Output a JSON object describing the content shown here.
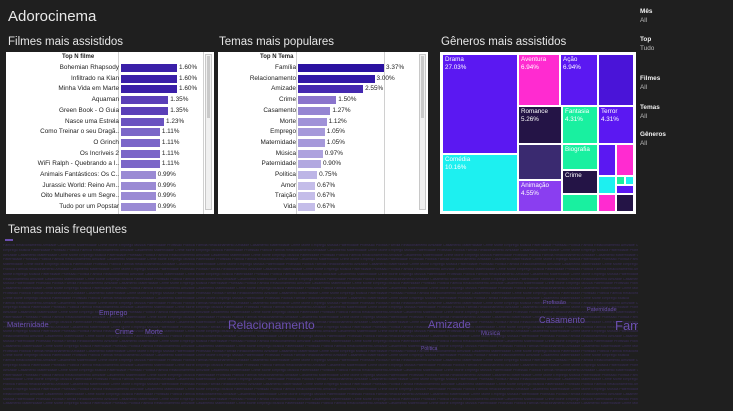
{
  "dashboard_title": "Adorocinema",
  "filmes": {
    "title": "Filmes mais assistidos",
    "col_header": "Top N filme",
    "rows": [
      {
        "label": "Bohemian Rhapsody",
        "value": 1.6,
        "text": "1.60%",
        "color": "#3a1fa8"
      },
      {
        "label": "Infiltrado na Klan",
        "value": 1.6,
        "text": "1.60%",
        "color": "#3a1fa8"
      },
      {
        "label": "Minha Vida em Marte",
        "value": 1.6,
        "text": "1.60%",
        "color": "#3a1fa8"
      },
      {
        "label": "Aquaman",
        "value": 1.35,
        "text": "1.35%",
        "color": "#5a3fb8"
      },
      {
        "label": "Green Book - O Guia",
        "value": 1.35,
        "text": "1.35%",
        "color": "#5a3fb8"
      },
      {
        "label": "Nasce uma Estrela",
        "value": 1.23,
        "text": "1.23%",
        "color": "#6a52c0"
      },
      {
        "label": "Como Treinar o seu Dragã..",
        "value": 1.11,
        "text": "1.11%",
        "color": "#7b66c8"
      },
      {
        "label": "O Grinch",
        "value": 1.11,
        "text": "1.11%",
        "color": "#7b66c8"
      },
      {
        "label": "Os Incríveis 2",
        "value": 1.11,
        "text": "1.11%",
        "color": "#7b66c8"
      },
      {
        "label": "WiFi Ralph - Quebrando a I..",
        "value": 1.11,
        "text": "1.11%",
        "color": "#7b66c8"
      },
      {
        "label": "Animais Fantásticos: Os C..",
        "value": 0.99,
        "text": "0.99%",
        "color": "#9a8ad4"
      },
      {
        "label": "Jurassic World: Reino Am..",
        "value": 0.99,
        "text": "0.99%",
        "color": "#9a8ad4"
      },
      {
        "label": "Oito Mulheres e um Segre..",
        "value": 0.99,
        "text": "0.99%",
        "color": "#9a8ad4"
      },
      {
        "label": "Tudo por um Popstar",
        "value": 0.99,
        "text": "0.99%",
        "color": "#9a8ad4"
      }
    ]
  },
  "temas": {
    "title": "Temas mais populares",
    "col_header": "Top N Tema",
    "rows": [
      {
        "label": "Família",
        "value": 3.37,
        "text": "3.37%",
        "color": "#2a11a0"
      },
      {
        "label": "Relacionamento",
        "value": 3.0,
        "text": "3.00%",
        "color": "#3218a6"
      },
      {
        "label": "Amizade",
        "value": 2.55,
        "text": "2.55%",
        "color": "#4428b0"
      },
      {
        "label": "Crime",
        "value": 1.5,
        "text": "1.50%",
        "color": "#8a74cc"
      },
      {
        "label": "Casamento",
        "value": 1.27,
        "text": "1.27%",
        "color": "#9585d2"
      },
      {
        "label": "Morte",
        "value": 1.12,
        "text": "1.12%",
        "color": "#a092d8"
      },
      {
        "label": "Emprego",
        "value": 1.05,
        "text": "1.05%",
        "color": "#a699da"
      },
      {
        "label": "Maternidade",
        "value": 1.05,
        "text": "1.05%",
        "color": "#a699da"
      },
      {
        "label": "Música",
        "value": 0.97,
        "text": "0.97%",
        "color": "#ada2de"
      },
      {
        "label": "Paternidade",
        "value": 0.9,
        "text": "0.90%",
        "color": "#b2a8e0"
      },
      {
        "label": "Política",
        "value": 0.75,
        "text": "0.75%",
        "color": "#bdb5e6"
      },
      {
        "label": "Amor",
        "value": 0.67,
        "text": "0.67%",
        "color": "#c4bde9"
      },
      {
        "label": "Traição",
        "value": 0.67,
        "text": "0.67%",
        "color": "#c4bde9"
      },
      {
        "label": "Vida",
        "value": 0.67,
        "text": "0.67%",
        "color": "#c4bde9"
      }
    ]
  },
  "generos": {
    "title": "Gêneros mais assistidos",
    "tiles": [
      {
        "name": "Drama",
        "pct": "27.03%",
        "color": "#5b18f2"
      },
      {
        "name": "Aventura",
        "pct": "6.94%",
        "color": "#ff2bd0"
      },
      {
        "name": "Ação",
        "pct": "6.94%",
        "color": "#5b18f2"
      },
      {
        "name": "Romance",
        "pct": "5.26%",
        "color": "#241446"
      },
      {
        "name": "Fantasia",
        "pct": "4.31%",
        "color": "#19f0a0"
      },
      {
        "name": "Terror",
        "pct": "4.31%",
        "color": "#5b18f2"
      },
      {
        "name": "Comédia",
        "pct": "10.16%",
        "color": "#1df0f0"
      },
      {
        "name": "Biografia",
        "pct": "",
        "color": "#19f0a0"
      },
      {
        "name": "Animação",
        "pct": "4.55%",
        "color": "#8a3ef0"
      },
      {
        "name": "Crime",
        "pct": "",
        "color": "#241446"
      }
    ]
  },
  "filters": [
    {
      "key": "Mês",
      "value": "All"
    },
    {
      "key": "Top",
      "value": "Tudo"
    },
    {
      "key": "Filmes",
      "value": "All"
    },
    {
      "key": "Temas",
      "value": "All"
    },
    {
      "key": "Gêneros",
      "value": "All"
    }
  ],
  "wordcloud": {
    "title": "Temas mais frequentes",
    "big_words": [
      "Família",
      "Relacionamento",
      "Amizade",
      "Casamento",
      "Maternidade",
      "Crime",
      "Morte",
      "Emprego",
      "Música",
      "Paternidade",
      "Profissão",
      "Política"
    ]
  }
}
